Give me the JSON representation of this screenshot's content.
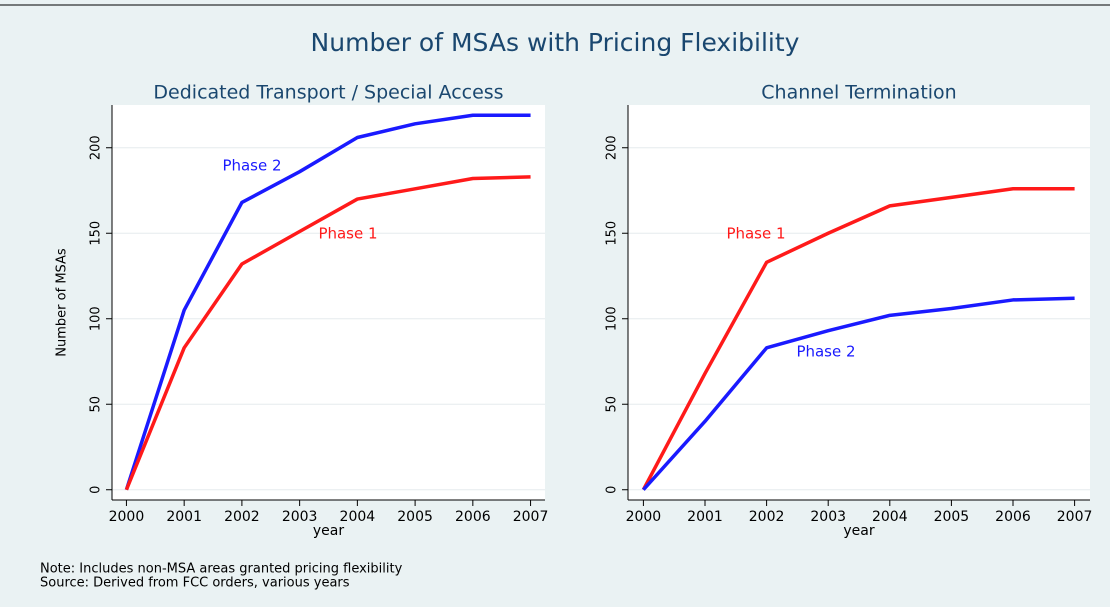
{
  "title": "Number of MSAs with Pricing Flexibility",
  "notes": [
    "Note: Includes non-MSA areas granted pricing flexibility",
    "Source: Derived from FCC orders, various years"
  ],
  "chart_data": [
    {
      "type": "line",
      "title": "Dedicated Transport / Special Access",
      "ylabel": "Number of MSAs",
      "xlabel": "year",
      "x": [
        2000,
        2001,
        2002,
        2003,
        2004,
        2005,
        2006,
        2007
      ],
      "series": [
        {
          "name": "Phase 2",
          "color": "#1a1aff",
          "values": [
            0,
            105,
            168,
            186,
            206,
            214,
            219,
            219
          ]
        },
        {
          "name": "Phase 1",
          "color": "#ff1a1a",
          "values": [
            0,
            83,
            132,
            151,
            170,
            176,
            182,
            183
          ]
        }
      ],
      "xlim": [
        1999.75,
        2007.25
      ],
      "xticks": [
        2000,
        2001,
        2002,
        2003,
        2004,
        2005,
        2006,
        2007
      ],
      "ylim": [
        -6,
        225
      ],
      "yticks": [
        0,
        50,
        100,
        150,
        200
      ],
      "grid": true
    },
    {
      "type": "line",
      "title": "Channel Termination",
      "xlabel": "year",
      "x": [
        2000,
        2001,
        2002,
        2003,
        2004,
        2005,
        2006,
        2007
      ],
      "series": [
        {
          "name": "Phase 1",
          "color": "#ff1a1a",
          "values": [
            0,
            68,
            133,
            150,
            166,
            171,
            176,
            176
          ]
        },
        {
          "name": "Phase 2",
          "color": "#1a1aff",
          "values": [
            0,
            40,
            83,
            93,
            102,
            106,
            111,
            112
          ]
        }
      ],
      "xlim": [
        1999.75,
        2007.25
      ],
      "xticks": [
        2000,
        2001,
        2002,
        2003,
        2004,
        2005,
        2006,
        2007
      ],
      "ylim": [
        -6,
        225
      ],
      "yticks": [
        0,
        50,
        100,
        150,
        200
      ],
      "grid": true
    }
  ]
}
